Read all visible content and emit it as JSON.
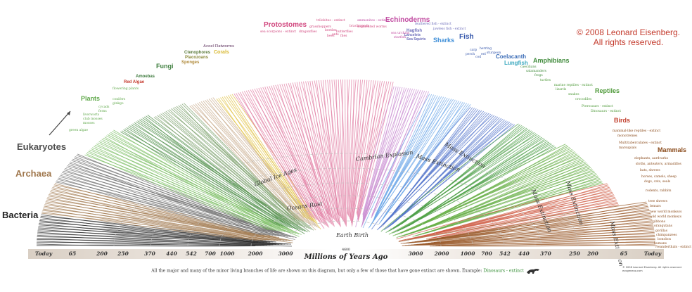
{
  "copyright": {
    "line1": "© 2008 Leonard Eisenberg.",
    "line2": "All rights reserved."
  },
  "groups": [
    {
      "name": "Bacteria",
      "color": "#222222"
    },
    {
      "name": "Archaea",
      "color": "#a0784e"
    },
    {
      "name": "Eukaryotes",
      "color": "#4f4f4f"
    },
    {
      "name": "Plants",
      "color": "#5fa84a"
    },
    {
      "name": "Amoebas",
      "color": "#3d7a3d"
    },
    {
      "name": "Red Algae",
      "color": "#c53a2e"
    },
    {
      "name": "Fungi",
      "color": "#3f7f3f"
    },
    {
      "name": "Ctenophores",
      "color": "#5a7a3a"
    },
    {
      "name": "Placozoans",
      "color": "#8a8a3a"
    },
    {
      "name": "Sponges",
      "color": "#b08a3a"
    },
    {
      "name": "Corals",
      "color": "#d8b830"
    },
    {
      "name": "Acoel Flatworms",
      "color": "#8a6a8a"
    },
    {
      "name": "Protostomes",
      "color": "#d0447c"
    },
    {
      "name": "Echinoderms",
      "color": "#c04aa0"
    },
    {
      "name": "Hagfish",
      "color": "#6a6ab8"
    },
    {
      "name": "Lancelets",
      "color": "#6a6ab8"
    },
    {
      "name": "Sea Squirts",
      "color": "#6a6ab8"
    },
    {
      "name": "Sharks",
      "color": "#3f8fd8"
    },
    {
      "name": "Fish",
      "color": "#3355aa"
    },
    {
      "name": "Coelacanth",
      "color": "#3f6fb8"
    },
    {
      "name": "Lungfish",
      "color": "#3faac0"
    },
    {
      "name": "Amphibians",
      "color": "#3f8a3a"
    },
    {
      "name": "Reptiles",
      "color": "#4f9a3a"
    },
    {
      "name": "Birds",
      "color": "#c2402e"
    },
    {
      "name": "Mammals",
      "color": "#8a4a1a"
    }
  ],
  "minor_labels": [
    "green algae",
    "liverworts",
    "club mosses",
    "mosses",
    "ferns",
    "cycads",
    "conifers",
    "ginkgo",
    "flowering plants",
    "sea scorpions - extinct",
    "dragonflies",
    "grasshoppers",
    "beetles",
    "ants",
    "butterflies",
    "flies",
    "bees",
    "trilobites - extinct",
    "brachiopods",
    "ammonites - extinct",
    "segmented worms",
    "sea urchins",
    "starfish",
    "feathered fish - extinct",
    "jawless fish - extinct",
    "carp",
    "herring",
    "sturgeon",
    "eel",
    "cod",
    "perch",
    "salamanders",
    "frogs",
    "caecilians",
    "turtles",
    "marine reptiles - extinct",
    "lizards",
    "snakes",
    "crocodiles",
    "Pterosaurs - extinct",
    "Dinosaurs - extinct",
    "mammal-like reptiles - extinct",
    "monotremes",
    "Multituberculates - extinct",
    "marsupials",
    "elephants, aardvarks",
    "sloths, anteaters, armadillos",
    "bats, shrews",
    "horses, camels, sheep",
    "dogs, cats, seals",
    "rodents, rabbits",
    "tree shrews",
    "lemurs",
    "new world monkeys",
    "old world monkeys",
    "gibbons",
    "orangutans",
    "gorillas",
    "chimpanzees",
    "bonobos",
    "humans",
    "Neanderthals - extinct"
  ],
  "eras": [
    {
      "label": "Global Ice Ages"
    },
    {
      "label": "Cambrian Explosion"
    },
    {
      "label": "Mass Extinction"
    },
    {
      "label": "Mass Extinction"
    },
    {
      "label": "Mass Extinction"
    },
    {
      "label": "Mass Extinction"
    },
    {
      "label": "Mass Extinction"
    },
    {
      "label": "Oceans Rust"
    },
    {
      "label": "Earth Birth"
    }
  ],
  "axis": {
    "title": "Millions of Years Ago",
    "zero_label": "4600",
    "left_ticks": [
      "Today",
      "65",
      "200",
      "250",
      "370",
      "440",
      "542",
      "700",
      "1000",
      "2000",
      "3000"
    ],
    "right_ticks": [
      "3000",
      "2000",
      "1000",
      "700",
      "542",
      "440",
      "370",
      "250",
      "200",
      "65",
      "Today"
    ]
  },
  "caption": {
    "text": "All the major and many of the minor living branches of life are shown on this diagram, but only a few of those that have gone extinct are shown. Example:",
    "example": "Dinosaurs - extinct"
  },
  "small_copyright": {
    "line1": "© 2008 Leonard Eisenberg. All rights reserved.",
    "line2": "evogeneao.com"
  }
}
